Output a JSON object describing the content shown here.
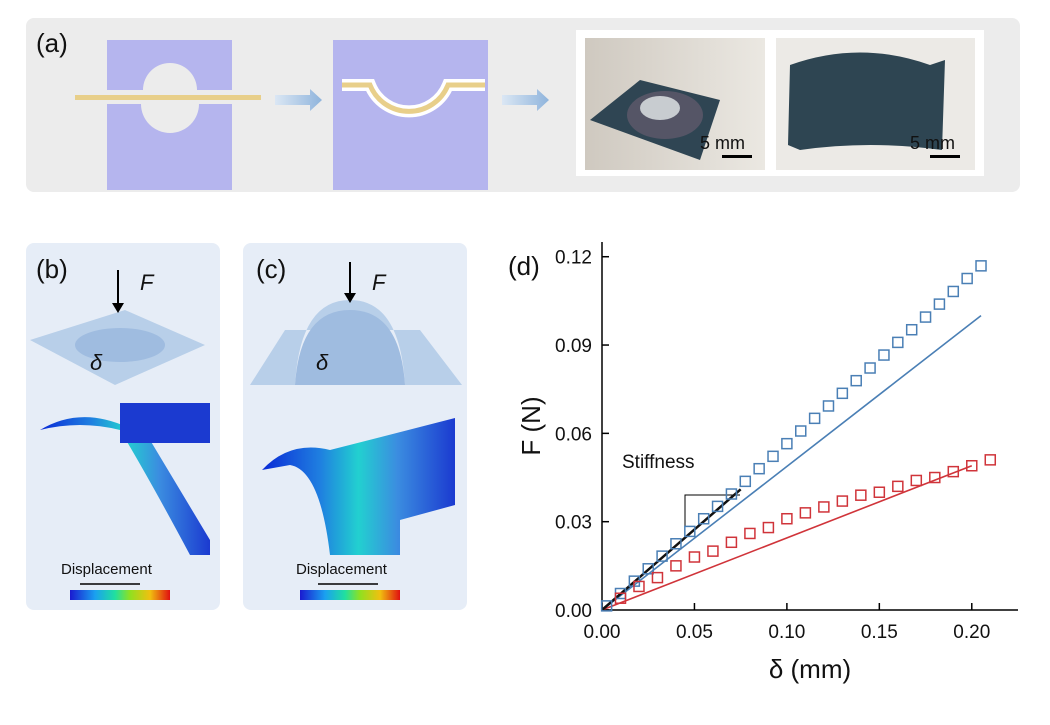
{
  "panels": {
    "a": {
      "label": "(a)",
      "scale_1": "5 mm",
      "scale_2": "5 mm"
    },
    "b": {
      "label": "(b)",
      "force": "F",
      "deflection": "δ",
      "colorbar": "Displacement"
    },
    "c": {
      "label": "(c)",
      "force": "F",
      "deflection": "δ",
      "colorbar": "Displacement"
    },
    "d": {
      "label": "(d)"
    }
  },
  "chart_data": {
    "type": "scatter",
    "x_label": "δ (mm)",
    "y_label": "F (N)",
    "annotation": "Stiffness",
    "xlim": [
      0,
      0.225
    ],
    "ylim": [
      0,
      0.125
    ],
    "xticks": [
      {
        "value": 0,
        "label": "0.00"
      },
      {
        "value": 0.05,
        "label": "0.05"
      },
      {
        "value": 0.1,
        "label": "0.10"
      },
      {
        "value": 0.15,
        "label": "0.15"
      },
      {
        "value": 0.2,
        "label": "0.20"
      }
    ],
    "yticks": [
      {
        "value": 0,
        "label": "0.00"
      },
      {
        "value": 0.03,
        "label": "0.03"
      },
      {
        "value": 0.06,
        "label": "0.06"
      },
      {
        "value": 0.09,
        "label": "0.09"
      },
      {
        "value": 0.12,
        "label": "0.12"
      }
    ],
    "series": [
      {
        "color": "#4a7fb5",
        "marker": "square",
        "x": [
          0.0025,
          0.01,
          0.0175,
          0.025,
          0.0325,
          0.04,
          0.0475,
          0.055,
          0.0625,
          0.07,
          0.0775,
          0.085,
          0.0925,
          0.1,
          0.1075,
          0.115,
          0.1225,
          0.13,
          0.1375,
          0.145,
          0.1525,
          0.16,
          0.1675,
          0.175,
          0.1825,
          0.19,
          0.1975,
          0.205
        ],
        "values": [
          0.0014,
          0.0056,
          0.0098,
          0.014,
          0.0183,
          0.0225,
          0.0267,
          0.031,
          0.0352,
          0.0394,
          0.0437,
          0.048,
          0.0522,
          0.0565,
          0.0608,
          0.0651,
          0.0693,
          0.0736,
          0.0779,
          0.0822,
          0.0866,
          0.0909,
          0.0952,
          0.0995,
          0.1039,
          0.1082,
          0.1126,
          0.1169
        ]
      },
      {
        "color": "#d0343a",
        "marker": "square",
        "x": [
          0.01,
          0.02,
          0.03,
          0.04,
          0.05,
          0.06,
          0.07,
          0.08,
          0.09,
          0.1,
          0.11,
          0.12,
          0.13,
          0.14,
          0.15,
          0.16,
          0.17,
          0.18,
          0.19,
          0.2,
          0.21
        ],
        "values": [
          0.004,
          0.008,
          0.011,
          0.015,
          0.018,
          0.02,
          0.023,
          0.026,
          0.028,
          0.031,
          0.033,
          0.035,
          0.037,
          0.039,
          0.04,
          0.042,
          0.044,
          0.045,
          0.047,
          0.049,
          0.051
        ]
      }
    ],
    "lines": [
      {
        "color": "#4a7fb5",
        "x": [
          0,
          0.205
        ],
        "values": [
          0,
          0.1
        ]
      },
      {
        "color": "#d0343a",
        "x": [
          0,
          0.2
        ],
        "values": [
          0,
          0.049
        ]
      },
      {
        "color": "#111111",
        "x": [
          0,
          0.075
        ],
        "values": [
          0,
          0.041
        ]
      }
    ]
  }
}
